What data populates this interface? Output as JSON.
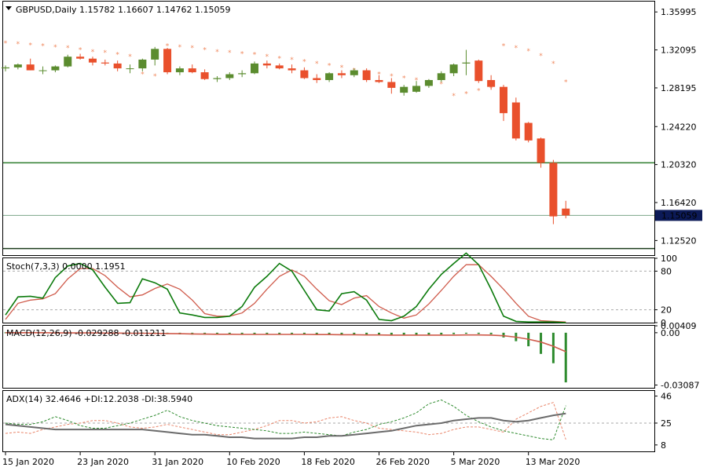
{
  "colors": {
    "bull": "#5b8c2f",
    "bear": "#e9502c",
    "sar": "#f08a60",
    "hline": "#2d7d2d",
    "price_line": "#7da68a",
    "stoch_main": "#0b7a0b",
    "stoch_signal": "#cf5a4a",
    "macd_hist": "#2e8b2e",
    "macd_signal": "#cf5a4a",
    "adx": "#6b6b6b",
    "plus_di": "#e9856a",
    "minus_di": "#2e8b2e",
    "price_label_bg": "#0c1a57",
    "price_label_text": "#ffffff"
  },
  "main": {
    "title_text": "GBPUSD,Daily  1.15782 1.16607 1.14762 1.15059",
    "current_price_label": "1.15059",
    "y_ticks": [
      "1.35995",
      "1.32095",
      "1.28195",
      "1.24220",
      "1.20320",
      "1.16420",
      "1.12520"
    ]
  },
  "stoch": {
    "title_text": "Stoch(7,3,3) 0.0000 1.1951",
    "y_ticks": [
      "100",
      "80",
      "20",
      "0"
    ]
  },
  "macd": {
    "title_text": "MACD(12,26,9) -0.029288 -0.011211",
    "y_ticks": [
      "0.00409",
      "0.00",
      "-0.03087"
    ]
  },
  "adx": {
    "title_text": "ADX(14) 32.4646 +DI:12.2038 -DI:38.5940",
    "y_ticks": [
      "46",
      "25",
      "8"
    ]
  },
  "x_labels": [
    "15 Jan 2020",
    "23 Jan 2020",
    "31 Jan 2020",
    "10 Feb 2020",
    "18 Feb 2020",
    "26 Feb 2020",
    "5 Mar 2020",
    "13 Mar 2020"
  ],
  "chart_data": {
    "type": "candlestick",
    "symbol": "GBPUSD",
    "timeframe": "Daily",
    "price_range": [
      1.1102,
      1.3706
    ],
    "horizontal_levels": [
      1.205,
      1.117
    ],
    "candles": [
      {
        "o": 1.302,
        "h": 1.305,
        "l": 1.299,
        "c": 1.303
      },
      {
        "o": 1.303,
        "h": 1.307,
        "l": 1.301,
        "c": 1.306
      },
      {
        "o": 1.306,
        "h": 1.312,
        "l": 1.3,
        "c": 1.3
      },
      {
        "o": 1.3,
        "h": 1.304,
        "l": 1.296,
        "c": 1.3
      },
      {
        "o": 1.3,
        "h": 1.305,
        "l": 1.298,
        "c": 1.304
      },
      {
        "o": 1.304,
        "h": 1.316,
        "l": 1.303,
        "c": 1.314
      },
      {
        "o": 1.314,
        "h": 1.317,
        "l": 1.311,
        "c": 1.312
      },
      {
        "o": 1.312,
        "h": 1.314,
        "l": 1.305,
        "c": 1.308
      },
      {
        "o": 1.308,
        "h": 1.311,
        "l": 1.305,
        "c": 1.307
      },
      {
        "o": 1.307,
        "h": 1.31,
        "l": 1.299,
        "c": 1.302
      },
      {
        "o": 1.302,
        "h": 1.306,
        "l": 1.297,
        "c": 1.302
      },
      {
        "o": 1.302,
        "h": 1.312,
        "l": 1.299,
        "c": 1.311
      },
      {
        "o": 1.311,
        "h": 1.324,
        "l": 1.305,
        "c": 1.322
      },
      {
        "o": 1.322,
        "h": 1.323,
        "l": 1.296,
        "c": 1.298
      },
      {
        "o": 1.298,
        "h": 1.304,
        "l": 1.295,
        "c": 1.302
      },
      {
        "o": 1.302,
        "h": 1.306,
        "l": 1.297,
        "c": 1.298
      },
      {
        "o": 1.298,
        "h": 1.301,
        "l": 1.29,
        "c": 1.291
      },
      {
        "o": 1.291,
        "h": 1.294,
        "l": 1.288,
        "c": 1.292
      },
      {
        "o": 1.292,
        "h": 1.298,
        "l": 1.29,
        "c": 1.296
      },
      {
        "o": 1.296,
        "h": 1.3,
        "l": 1.293,
        "c": 1.297
      },
      {
        "o": 1.297,
        "h": 1.309,
        "l": 1.296,
        "c": 1.307
      },
      {
        "o": 1.307,
        "h": 1.31,
        "l": 1.302,
        "c": 1.305
      },
      {
        "o": 1.305,
        "h": 1.307,
        "l": 1.301,
        "c": 1.302
      },
      {
        "o": 1.302,
        "h": 1.306,
        "l": 1.297,
        "c": 1.3
      },
      {
        "o": 1.3,
        "h": 1.303,
        "l": 1.291,
        "c": 1.292
      },
      {
        "o": 1.292,
        "h": 1.296,
        "l": 1.287,
        "c": 1.29
      },
      {
        "o": 1.29,
        "h": 1.298,
        "l": 1.288,
        "c": 1.297
      },
      {
        "o": 1.297,
        "h": 1.3,
        "l": 1.292,
        "c": 1.295
      },
      {
        "o": 1.295,
        "h": 1.302,
        "l": 1.293,
        "c": 1.3
      },
      {
        "o": 1.3,
        "h": 1.302,
        "l": 1.288,
        "c": 1.29
      },
      {
        "o": 1.29,
        "h": 1.295,
        "l": 1.287,
        "c": 1.288
      },
      {
        "o": 1.288,
        "h": 1.292,
        "l": 1.276,
        "c": 1.282
      },
      {
        "o": 1.277,
        "h": 1.285,
        "l": 1.274,
        "c": 1.283
      },
      {
        "o": 1.278,
        "h": 1.289,
        "l": 1.277,
        "c": 1.284
      },
      {
        "o": 1.284,
        "h": 1.291,
        "l": 1.282,
        "c": 1.29
      },
      {
        "o": 1.29,
        "h": 1.299,
        "l": 1.288,
        "c": 1.297
      },
      {
        "o": 1.297,
        "h": 1.307,
        "l": 1.294,
        "c": 1.306
      },
      {
        "o": 1.307,
        "h": 1.321,
        "l": 1.295,
        "c": 1.308
      },
      {
        "o": 1.31,
        "h": 1.311,
        "l": 1.287,
        "c": 1.289
      },
      {
        "o": 1.29,
        "h": 1.295,
        "l": 1.28,
        "c": 1.283
      },
      {
        "o": 1.283,
        "h": 1.285,
        "l": 1.248,
        "c": 1.256
      },
      {
        "o": 1.267,
        "h": 1.272,
        "l": 1.228,
        "c": 1.23
      },
      {
        "o": 1.246,
        "h": 1.247,
        "l": 1.226,
        "c": 1.228
      },
      {
        "o": 1.23,
        "h": 1.231,
        "l": 1.2,
        "c": 1.205
      },
      {
        "o": 1.205,
        "h": 1.208,
        "l": 1.142,
        "c": 1.15
      },
      {
        "o": 1.158,
        "h": 1.166,
        "l": 1.148,
        "c": 1.151
      }
    ],
    "parabolic_sar": [
      1.328,
      1.327,
      1.326,
      1.325,
      1.324,
      1.323,
      1.321,
      1.319,
      1.318,
      1.316,
      1.314,
      1.296,
      1.294,
      1.325,
      1.324,
      1.323,
      1.321,
      1.319,
      1.318,
      1.317,
      1.316,
      1.314,
      1.312,
      1.311,
      1.309,
      1.307,
      1.305,
      1.303,
      1.3,
      1.298,
      1.296,
      1.294,
      1.292,
      1.29,
      1.288,
      1.286,
      1.274,
      1.276,
      1.279,
      1.282,
      1.325,
      1.323,
      1.32,
      1.315,
      1.307,
      1.288
    ],
    "stochastic": {
      "range": [
        0,
        100
      ],
      "levels": [
        80,
        20
      ],
      "main": [
        12,
        40,
        41,
        38,
        70,
        88,
        92,
        82,
        55,
        30,
        31,
        68,
        62,
        52,
        15,
        12,
        8,
        8,
        10,
        25,
        55,
        72,
        92,
        80,
        50,
        20,
        18,
        45,
        48,
        35,
        5,
        3,
        10,
        25,
        52,
        75,
        92,
        108,
        90,
        52,
        10,
        2,
        1,
        1,
        1,
        0
      ],
      "signal": [
        5,
        30,
        35,
        37,
        45,
        68,
        84,
        84,
        73,
        55,
        40,
        43,
        53,
        60,
        52,
        35,
        14,
        10,
        10,
        15,
        30,
        52,
        72,
        82,
        72,
        52,
        34,
        28,
        38,
        42,
        25,
        15,
        7,
        12,
        29,
        50,
        72,
        90,
        90,
        72,
        52,
        30,
        10,
        3,
        2,
        1
      ]
    },
    "macd": {
      "range": [
        -0.0325,
        0.0041
      ],
      "histogram": [
        0.0002,
        0.0001,
        0.0001,
        0.0001,
        0.0001,
        0.0001,
        0.0001,
        0.0001,
        0.0001,
        0.0001,
        0.0001,
        0.0001,
        0.0001,
        -0.0008,
        -0.001,
        -0.0011,
        -0.0012,
        -0.0012,
        -0.0012,
        -0.0011,
        -0.001,
        -0.0009,
        -0.0008,
        -0.0008,
        -0.0009,
        -0.001,
        -0.0011,
        -0.0012,
        -0.0013,
        -0.0014,
        -0.0015,
        -0.0016,
        -0.0016,
        -0.0014,
        -0.0012,
        -0.001,
        -0.0008,
        -0.0006,
        -0.0007,
        -0.0009,
        -0.0028,
        -0.005,
        -0.008,
        -0.0125,
        -0.018,
        -0.0293
      ],
      "signal": [
        0.0,
        0.0,
        0.0,
        0.0,
        -0.0001,
        -0.0001,
        -0.0001,
        -0.0001,
        -0.0002,
        -0.0002,
        -0.0003,
        -0.0003,
        -0.0004,
        -0.0005,
        -0.0006,
        -0.0007,
        -0.0008,
        -0.0009,
        -0.0009,
        -0.001,
        -0.001,
        -0.001,
        -0.001,
        -0.001,
        -0.001,
        -0.0011,
        -0.0011,
        -0.0012,
        -0.0012,
        -0.0013,
        -0.0013,
        -0.0014,
        -0.0014,
        -0.0014,
        -0.0014,
        -0.0014,
        -0.0014,
        -0.0013,
        -0.0013,
        -0.0014,
        -0.0018,
        -0.0026,
        -0.0038,
        -0.0055,
        -0.008,
        -0.0112
      ]
    },
    "adx": {
      "range": [
        3,
        50
      ],
      "levels": [
        25
      ],
      "adx": [
        24,
        23,
        22,
        21,
        20,
        20,
        20,
        20,
        20,
        20,
        20,
        20,
        19,
        18,
        17,
        16,
        16,
        15,
        14,
        14,
        13,
        13,
        13,
        13,
        14,
        14,
        15,
        15,
        16,
        17,
        18,
        19,
        21,
        23,
        24,
        25,
        27,
        28,
        29,
        29,
        27,
        26,
        27,
        29,
        31,
        32.46
      ],
      "plus_di": [
        17,
        18,
        17,
        20,
        22,
        24,
        25,
        27,
        27,
        25,
        22,
        21,
        22,
        24,
        22,
        20,
        18,
        16,
        16,
        18,
        20,
        23,
        27,
        27,
        25,
        26,
        29,
        30,
        27,
        25,
        21,
        20,
        19,
        18,
        16,
        17,
        20,
        22,
        22,
        20,
        18,
        28,
        33,
        38,
        41,
        12.2
      ],
      "minus_di": [
        25,
        24,
        24,
        26,
        30,
        27,
        23,
        21,
        21,
        23,
        25,
        28,
        31,
        35,
        30,
        27,
        25,
        23,
        22,
        21,
        20,
        19,
        17,
        17,
        18,
        17,
        16,
        15,
        18,
        20,
        24,
        26,
        29,
        33,
        40,
        43,
        38,
        31,
        26,
        22,
        19,
        17,
        15,
        13,
        12,
        38.59
      ]
    }
  }
}
